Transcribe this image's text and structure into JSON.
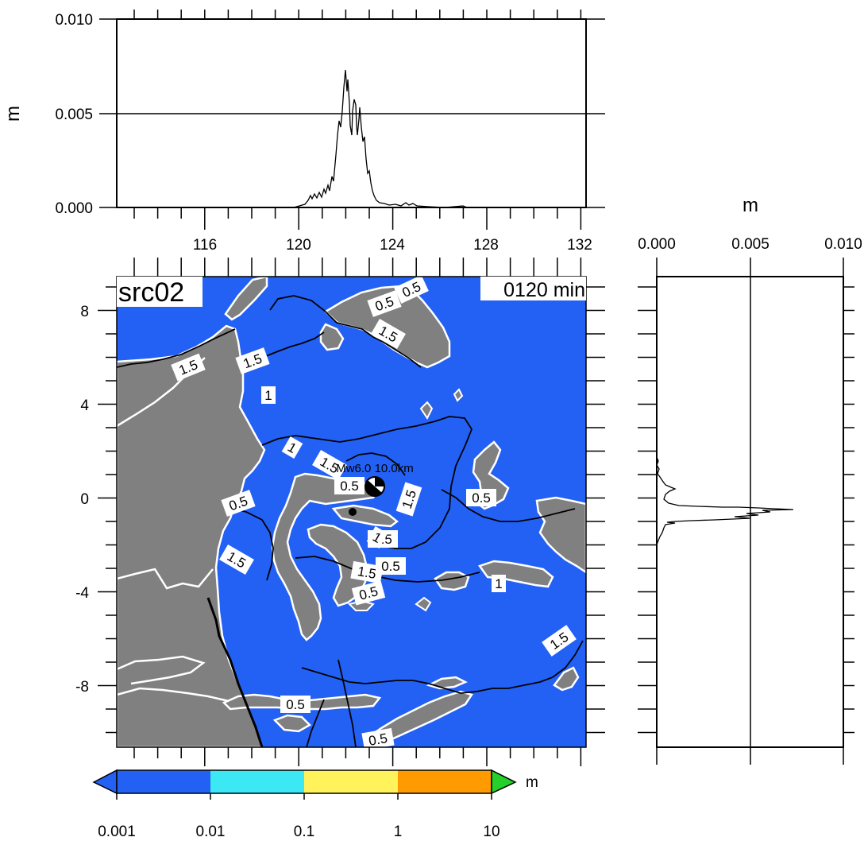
{
  "figure": {
    "source_label": "src02",
    "time_label": "0120 min",
    "event_label": "Mw6.0 10.0km"
  },
  "top_profile": {
    "y_unit": "m",
    "y_ticks": [
      "0.000",
      "0.005",
      "0.010"
    ],
    "x_ticks": [
      "116",
      "120",
      "124",
      "128",
      "132"
    ],
    "y_range": [
      0,
      0.01
    ],
    "x_range": [
      112.9,
      132.4
    ]
  },
  "side_profile": {
    "x_unit": "m",
    "x_ticks": [
      "0.000",
      "0.005",
      "0.010"
    ],
    "x_range": [
      0,
      0.01
    ]
  },
  "map": {
    "lat_ticks": [
      "8",
      "4",
      "0",
      "-4",
      "-8"
    ],
    "lon_range": [
      112.9,
      132.4
    ],
    "lat_range": [
      -10.5,
      9.4
    ],
    "ocean_color": "#2361f5",
    "land_color": "#808080",
    "contour_labels": [
      {
        "text": "0.5"
      },
      {
        "text": "1.5"
      },
      {
        "text": "1.5"
      },
      {
        "text": "1"
      },
      {
        "text": "0.5"
      },
      {
        "text": "1.5"
      },
      {
        "text": "1"
      },
      {
        "text": "0.5"
      },
      {
        "text": "1.5"
      },
      {
        "text": "0.5"
      },
      {
        "text": "1.5"
      },
      {
        "text": "0.5"
      },
      {
        "text": "1.5"
      },
      {
        "text": "1"
      },
      {
        "text": "1.5"
      },
      {
        "text": "0.5"
      },
      {
        "text": "0.5"
      },
      {
        "text": "0.5"
      },
      {
        "text": "1"
      },
      {
        "text": "1.5"
      },
      {
        "text": "0.5"
      },
      {
        "text": "0.5"
      }
    ]
  },
  "colorbar": {
    "unit": "m",
    "tick_labels": [
      "0.001",
      "0.01",
      "0.1",
      "1",
      "10"
    ],
    "colors": [
      "#2361f5",
      "#3be8f4",
      "#fff25a",
      "#ff9a00",
      "#ff2a00"
    ],
    "under_color": "#2361f5",
    "over_color": "#25d02a"
  }
}
